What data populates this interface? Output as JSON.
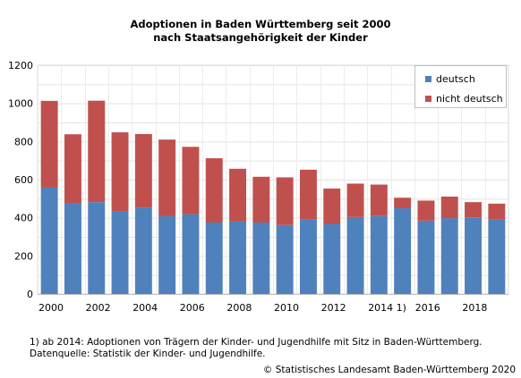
{
  "chart_data": {
    "type": "bar",
    "stacked": true,
    "title_line1": "Adoptionen in Baden Württemberg seit 2000",
    "title_line2": "nach Staatsangehörigkeit der Kinder",
    "categories": [
      "2000",
      "2001",
      "2002",
      "2003",
      "2004",
      "2005",
      "2006",
      "2007",
      "2008",
      "2009",
      "2010",
      "2011",
      "2012",
      "2013",
      "2014",
      "2015",
      "2016",
      "2017",
      "2018",
      "2019"
    ],
    "x_tick_labels": [
      {
        "index": 0,
        "label": "2000"
      },
      {
        "index": 2,
        "label": "2002"
      },
      {
        "index": 4,
        "label": "2004"
      },
      {
        "index": 6,
        "label": "2006"
      },
      {
        "index": 8,
        "label": "2008"
      },
      {
        "index": 10,
        "label": "2010"
      },
      {
        "index": 12,
        "label": "2012"
      },
      {
        "index": 14,
        "label": "2014 1)"
      },
      {
        "index": 16,
        "label": "2016"
      },
      {
        "index": 18,
        "label": "2018"
      }
    ],
    "series": [
      {
        "name": "deutsch",
        "color": "#4f81bd",
        "values": [
          558,
          478,
          482,
          433,
          454,
          408,
          419,
          375,
          380,
          375,
          362,
          390,
          368,
          404,
          409,
          450,
          385,
          398,
          402,
          392
        ]
      },
      {
        "name": "nicht deutsch",
        "color": "#c0504d",
        "values": [
          455,
          360,
          532,
          415,
          385,
          402,
          353,
          337,
          277,
          240,
          250,
          262,
          185,
          175,
          165,
          55,
          105,
          113,
          80,
          82
        ]
      }
    ],
    "ylim": [
      0,
      1200
    ],
    "yticks": [
      0,
      200,
      400,
      600,
      800,
      1000,
      1200
    ],
    "grid": true,
    "legend_position": "top-right"
  },
  "footnotes": {
    "line1": "1) ab 2014: Adoptionen von Trägern der Kinder- und Jugendhilfe mit Sitz in Baden-Württemberg.",
    "line2": "Datenquelle: Statistik der Kinder- und Jugendhilfe."
  },
  "copyright": "© Statistisches Landesamt Baden-Württemberg 2020"
}
